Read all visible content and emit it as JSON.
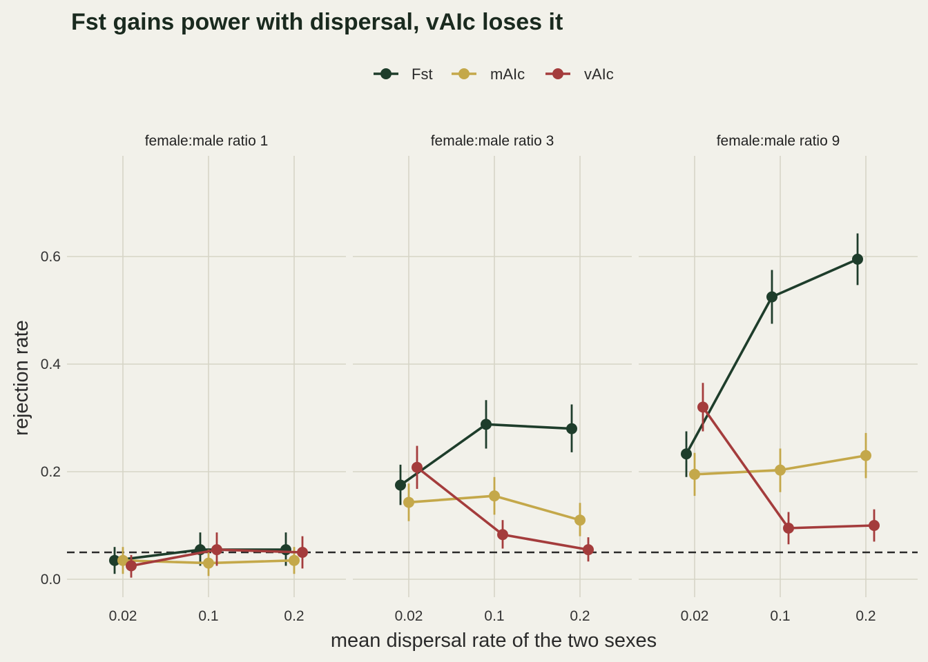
{
  "chart_data": {
    "type": "line",
    "title": "Fst gains power with dispersal, vAIc loses it",
    "xlabel": "mean dispersal rate of the two sexes",
    "ylabel": "rejection rate",
    "x_categories": [
      "0.02",
      "0.1",
      "0.2"
    ],
    "y_ticks": [
      "0.0",
      "0.2",
      "0.4",
      "0.6"
    ],
    "ylim": [
      -0.03,
      0.78
    ],
    "reference_line": 0.05,
    "legend_position": "top",
    "grid": true,
    "colors": {
      "Fst": "#1e3d2b",
      "mAIc": "#c4a84a",
      "vAIc": "#a43c3c"
    },
    "series_names": [
      "Fst",
      "mAIc",
      "vAIc"
    ],
    "panels": [
      {
        "label": "female:male ratio 1",
        "series": [
          {
            "name": "Fst",
            "values": [
              0.035,
              0.055,
              0.055
            ],
            "lower": [
              0.01,
              0.025,
              0.025
            ],
            "upper": [
              0.06,
              0.087,
              0.087
            ]
          },
          {
            "name": "mAIc",
            "values": [
              0.035,
              0.03,
              0.035
            ],
            "lower": [
              0.01,
              0.006,
              0.01
            ],
            "upper": [
              0.06,
              0.055,
              0.06
            ]
          },
          {
            "name": "vAIc",
            "values": [
              0.025,
              0.055,
              0.05
            ],
            "lower": [
              0.003,
              0.025,
              0.02
            ],
            "upper": [
              0.045,
              0.087,
              0.08
            ]
          }
        ]
      },
      {
        "label": "female:male ratio 3",
        "series": [
          {
            "name": "Fst",
            "values": [
              0.175,
              0.288,
              0.28
            ],
            "lower": [
              0.138,
              0.243,
              0.236
            ],
            "upper": [
              0.213,
              0.333,
              0.325
            ]
          },
          {
            "name": "mAIc",
            "values": [
              0.143,
              0.155,
              0.11
            ],
            "lower": [
              0.108,
              0.12,
              0.08
            ],
            "upper": [
              0.178,
              0.19,
              0.142
            ]
          },
          {
            "name": "vAIc",
            "values": [
              0.208,
              0.083,
              0.055
            ],
            "lower": [
              0.168,
              0.057,
              0.033
            ],
            "upper": [
              0.248,
              0.11,
              0.078
            ]
          }
        ]
      },
      {
        "label": "female:male ratio 9",
        "series": [
          {
            "name": "Fst",
            "values": [
              0.233,
              0.525,
              0.595
            ],
            "lower": [
              0.19,
              0.475,
              0.547
            ],
            "upper": [
              0.275,
              0.575,
              0.643
            ]
          },
          {
            "name": "mAIc",
            "values": [
              0.195,
              0.203,
              0.23
            ],
            "lower": [
              0.155,
              0.162,
              0.188
            ],
            "upper": [
              0.235,
              0.243,
              0.272
            ]
          },
          {
            "name": "vAIc",
            "values": [
              0.32,
              0.095,
              0.1
            ],
            "lower": [
              0.275,
              0.065,
              0.07
            ],
            "upper": [
              0.365,
              0.125,
              0.13
            ]
          }
        ]
      }
    ]
  }
}
